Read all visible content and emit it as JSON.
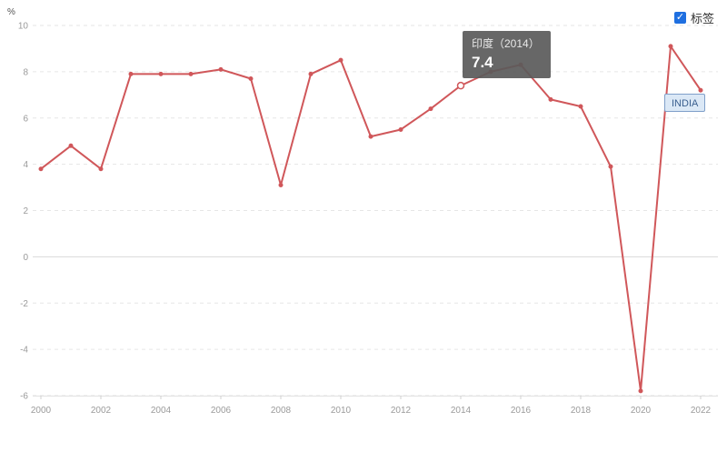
{
  "legend": {
    "label": "标签",
    "checked": true,
    "check_glyph": "✓"
  },
  "tooltip": {
    "title": "印度（2014）",
    "value": "7.4"
  },
  "series_tag": "INDIA",
  "chart_data": {
    "type": "line",
    "unit": "%",
    "x": [
      2000,
      2001,
      2002,
      2003,
      2004,
      2005,
      2006,
      2007,
      2008,
      2009,
      2010,
      2011,
      2012,
      2013,
      2014,
      2015,
      2016,
      2017,
      2018,
      2019,
      2020,
      2021,
      2022
    ],
    "x_tick_labels": [
      "2000",
      "2002",
      "2004",
      "2006",
      "2008",
      "2010",
      "2012",
      "2014",
      "2016",
      "2018",
      "2020",
      "2022"
    ],
    "y_ticks": [
      10,
      8,
      6,
      4,
      2,
      0,
      -2,
      -4,
      -6
    ],
    "ylim": [
      -6,
      10
    ],
    "grid": true,
    "series": [
      {
        "name": "INDIA",
        "color": "#d0575a",
        "values": [
          3.8,
          4.8,
          3.8,
          7.9,
          7.9,
          7.9,
          8.1,
          7.7,
          3.1,
          7.9,
          8.5,
          5.2,
          5.5,
          6.4,
          7.4,
          8.0,
          8.3,
          6.8,
          6.5,
          3.9,
          -5.8,
          9.1,
          7.2
        ]
      }
    ],
    "highlight_index": 14
  }
}
